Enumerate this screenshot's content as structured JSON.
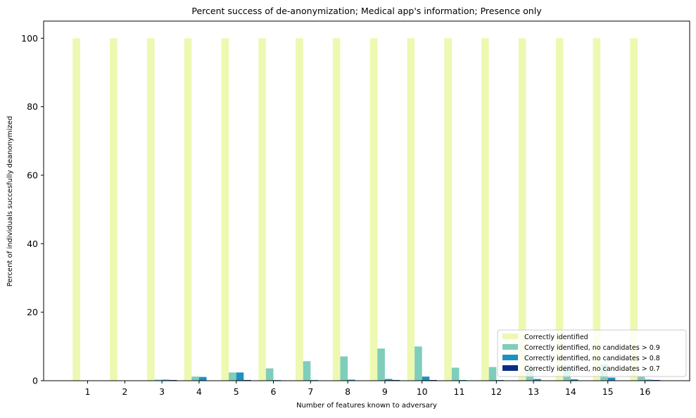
{
  "chart_data": {
    "type": "bar",
    "title": "Percent success of de-anonymization; Medical app's information; Presence only",
    "xlabel": "Number of features known to adversary",
    "ylabel": "Percent of individuals succesfully deanonymized",
    "categories": [
      "1",
      "2",
      "3",
      "4",
      "5",
      "6",
      "7",
      "8",
      "9",
      "10",
      "11",
      "12",
      "13",
      "14",
      "15",
      "16"
    ],
    "ylim": [
      0,
      105
    ],
    "yticks": [
      0,
      20,
      40,
      60,
      80,
      100
    ],
    "legend_position": "lower-right",
    "grid": false,
    "series": [
      {
        "name": "Correctly identified",
        "color": "#edf8b1",
        "values": [
          100,
          100,
          100,
          100,
          100,
          100,
          100,
          100,
          100,
          100,
          100,
          100,
          100,
          100,
          100,
          100
        ]
      },
      {
        "name": "Correctly identified, no candidates > 0.9",
        "color": "#7fcdbb",
        "values": [
          0,
          0.1,
          0.3,
          1.2,
          2.4,
          3.6,
          5.7,
          7.1,
          9.4,
          10.0,
          3.8,
          4.0,
          4.5,
          4.6,
          4.8,
          1.2
        ]
      },
      {
        "name": "Correctly identified, no candidates > 0.8",
        "color": "#1d91c0",
        "values": [
          0,
          0.1,
          0.3,
          1.1,
          2.4,
          0.2,
          0.2,
          0.3,
          0.5,
          1.2,
          0.2,
          0.2,
          0.5,
          0.4,
          0.9,
          0.3
        ]
      },
      {
        "name": "Correctly identified, no candidates > 0.7",
        "color": "#0c2c84",
        "values": [
          0,
          0.05,
          0.2,
          0,
          0.2,
          0.1,
          0,
          0,
          0.2,
          0.2,
          0,
          0,
          0,
          0,
          0,
          0.2
        ]
      }
    ]
  }
}
